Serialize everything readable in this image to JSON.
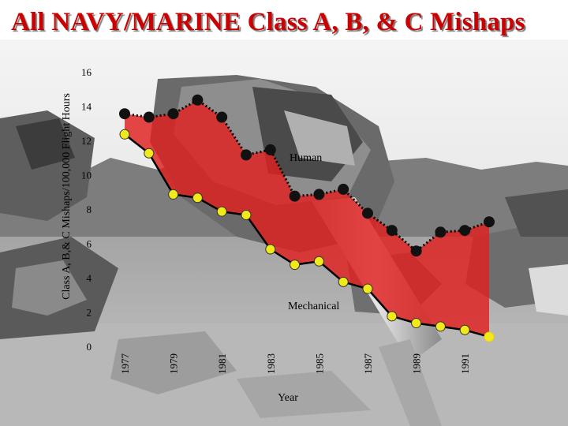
{
  "title": "All NAVY/MARINE Class A, B, & C Mishaps",
  "colors": {
    "title": "#cc0000",
    "human_marker": "#111111",
    "mechanical_marker": "#f0ea1a",
    "band_fill": "#e02020"
  },
  "chart_data": {
    "type": "line",
    "xlabel": "Year",
    "ylabel": "Class A, B,& C Mishaps/100,000 Flight Hours",
    "ylim": [
      0,
      16
    ],
    "yticks": [
      0,
      2,
      4,
      6,
      8,
      10,
      12,
      14,
      16
    ],
    "xlim": [
      1976.5,
      1992.5
    ],
    "xticks": [
      1977,
      1979,
      1981,
      1983,
      1985,
      1987,
      1989,
      1991
    ],
    "x": [
      1977,
      1978,
      1979,
      1980,
      1981,
      1982,
      1983,
      1984,
      1985,
      1986,
      1987,
      1988,
      1989,
      1990,
      1991,
      1992
    ],
    "series": [
      {
        "name": "Human",
        "values": [
          13.6,
          13.4,
          13.6,
          14.4,
          13.4,
          11.2,
          11.5,
          8.8,
          8.9,
          9.2,
          7.8,
          6.8,
          5.6,
          6.7,
          6.8,
          7.3
        ]
      },
      {
        "name": "Mechanical",
        "values": [
          12.4,
          11.3,
          8.9,
          8.7,
          7.9,
          7.7,
          5.7,
          4.8,
          5.0,
          3.8,
          3.4,
          1.8,
          1.4,
          1.2,
          1.0,
          0.6
        ]
      }
    ],
    "grid": false,
    "legend": "none"
  }
}
